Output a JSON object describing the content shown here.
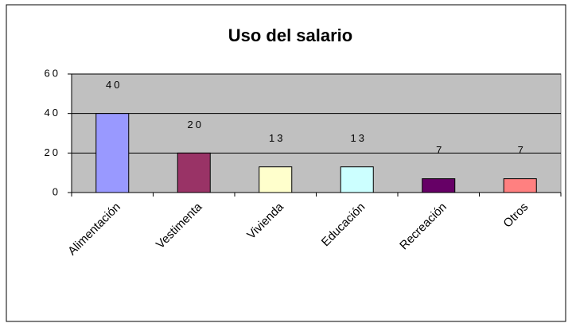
{
  "chart_data": {
    "type": "bar",
    "title": "Uso del salario",
    "categories": [
      "Alimentación",
      "Vestimenta",
      "Vivienda",
      "Educación",
      "Recreación",
      "Otros"
    ],
    "values": [
      40,
      20,
      13,
      13,
      7,
      7
    ],
    "colors": [
      "#9999ff",
      "#993366",
      "#ffffcc",
      "#ccffff",
      "#660066",
      "#ff8080"
    ],
    "ylim": [
      0,
      60
    ],
    "yticks": [
      0,
      20,
      40,
      60
    ],
    "grid": true
  }
}
